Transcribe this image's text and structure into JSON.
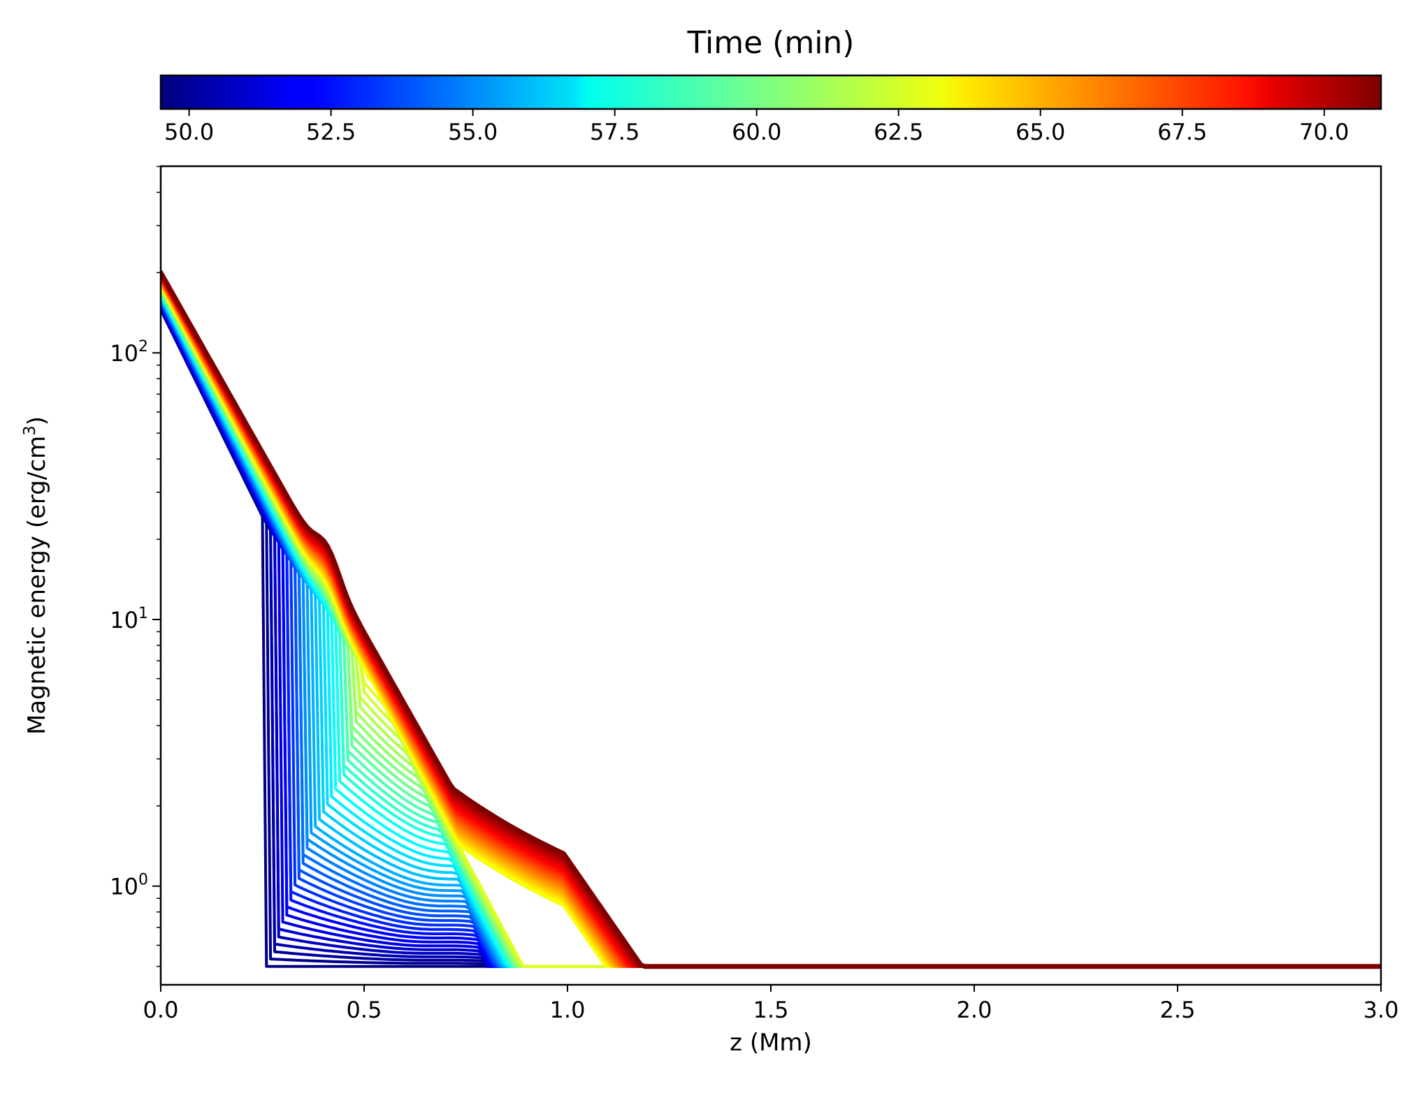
{
  "chart_data": {
    "type": "line",
    "title": "",
    "xlabel": "z (Mm)",
    "ylabel_main": "Magnetic energy (erg/cm",
    "ylabel_sup": "3",
    "ylabel_close": ")",
    "xlim": [
      0.0,
      3.0
    ],
    "ylim_log10": [
      -0.37,
      2.7
    ],
    "yscale": "log",
    "x_ticks": [
      {
        "value": 0.0,
        "label": "0.0"
      },
      {
        "value": 0.5,
        "label": "0.5"
      },
      {
        "value": 1.0,
        "label": "1.0"
      },
      {
        "value": 1.5,
        "label": "1.5"
      },
      {
        "value": 2.0,
        "label": "2.0"
      },
      {
        "value": 2.5,
        "label": "2.5"
      },
      {
        "value": 3.0,
        "label": "3.0"
      }
    ],
    "y_ticks": [
      {
        "exp": 0,
        "base": "10",
        "sup": "0"
      },
      {
        "exp": 1,
        "base": "10",
        "sup": "1"
      },
      {
        "exp": 2,
        "base": "10",
        "sup": "2"
      }
    ],
    "colorbar": {
      "title": "Time (min)",
      "range": [
        49.5,
        71.0
      ],
      "colormap": "jet",
      "ticks": [
        {
          "value": 50.0,
          "label": "50.0"
        },
        {
          "value": 52.5,
          "label": "52.5"
        },
        {
          "value": 55.0,
          "label": "55.0"
        },
        {
          "value": 57.5,
          "label": "57.5"
        },
        {
          "value": 60.0,
          "label": "60.0"
        },
        {
          "value": 62.5,
          "label": "62.5"
        },
        {
          "value": 65.0,
          "label": "65.0"
        },
        {
          "value": 67.5,
          "label": "67.5"
        },
        {
          "value": 70.0,
          "label": "70.0"
        }
      ]
    },
    "series": {
      "description": "One magnetic-energy profile per time step; color encodes time",
      "time_start": 49.5,
      "time_end": 71.0,
      "count": 65,
      "baseline_value": 0.5,
      "sample_profiles": [
        {
          "time": 49.5,
          "points": [
            [
              0.0,
              440
            ],
            [
              0.1,
              260
            ],
            [
              0.17,
              150
            ],
            [
              0.2,
              30
            ],
            [
              0.24,
              5
            ],
            [
              0.27,
              1.1
            ],
            [
              0.3,
              1.3
            ],
            [
              0.32,
              0.52
            ],
            [
              0.5,
              0.5
            ],
            [
              3.0,
              0.5
            ]
          ]
        },
        {
          "time": 56.0,
          "points": [
            [
              0.0,
              170
            ],
            [
              0.2,
              70
            ],
            [
              0.4,
              25
            ],
            [
              0.55,
              1.3
            ],
            [
              0.8,
              3.0
            ],
            [
              1.0,
              2.3
            ],
            [
              1.5,
              1.2
            ],
            [
              2.0,
              0.75
            ],
            [
              3.0,
              0.5
            ]
          ]
        },
        {
          "time": 71.0,
          "points": [
            [
              0.0,
              200
            ],
            [
              0.2,
              85
            ],
            [
              0.3,
              52
            ],
            [
              0.41,
              62
            ],
            [
              0.5,
              32
            ],
            [
              0.7,
              14
            ],
            [
              1.0,
              4.3
            ],
            [
              1.5,
              1.5
            ],
            [
              2.0,
              0.78
            ],
            [
              2.5,
              0.56
            ],
            [
              3.0,
              0.5
            ]
          ]
        }
      ]
    }
  }
}
